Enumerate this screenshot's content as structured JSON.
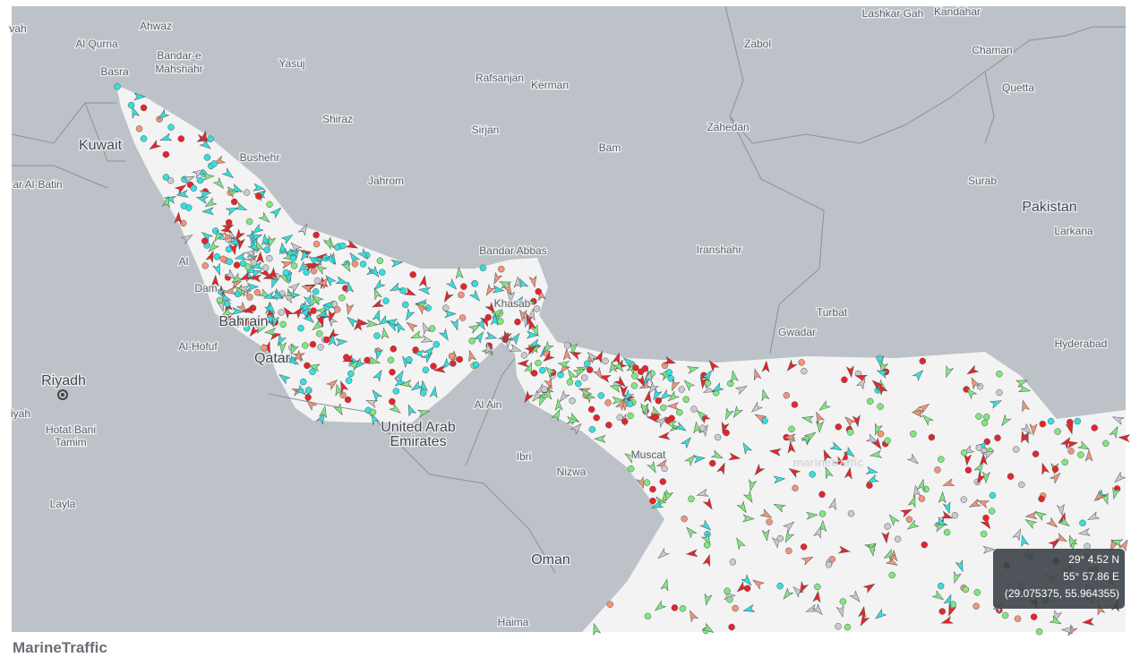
{
  "map": {
    "place_labels": [
      "vah",
      "Ahwaz",
      "Al Qurna",
      "Bandar-e",
      "Mahshahr",
      "Yasuj",
      "Rafsanjan",
      "Kerman",
      "Lashkar Gah",
      "Kandahar",
      "Zabol",
      "Chaman",
      "Quetta",
      "Basra",
      "Shiraz",
      "Sirjan",
      "Bam",
      "Zahedan",
      "Kuwait",
      "Bushehr",
      "ar Al-Batin",
      "Jahrom",
      "Surab",
      "Pakistan",
      "Larkana",
      "Bandar Abbas",
      "Iranshahr",
      "Al",
      "Dam",
      "Khasab",
      "Turbat",
      "Bahrain",
      "Al-Hofuf",
      "Hyderabad",
      "Gwadar",
      "Qatar",
      "Riyadh",
      "Al Ain",
      "Ibri",
      "United Arab",
      "Emirates",
      "iyah",
      "Hotat Bani",
      "Tamim",
      "Nizwa",
      "Muscat",
      "Oman",
      "Layla",
      "Haima"
    ],
    "watermark": "marinetraffic",
    "coordinates": {
      "lat": "29° 4.52 N",
      "lon": "55° 57.86 E",
      "decimal": "(29.075375, 55.964355)"
    }
  },
  "caption": "MarineTraffic"
}
